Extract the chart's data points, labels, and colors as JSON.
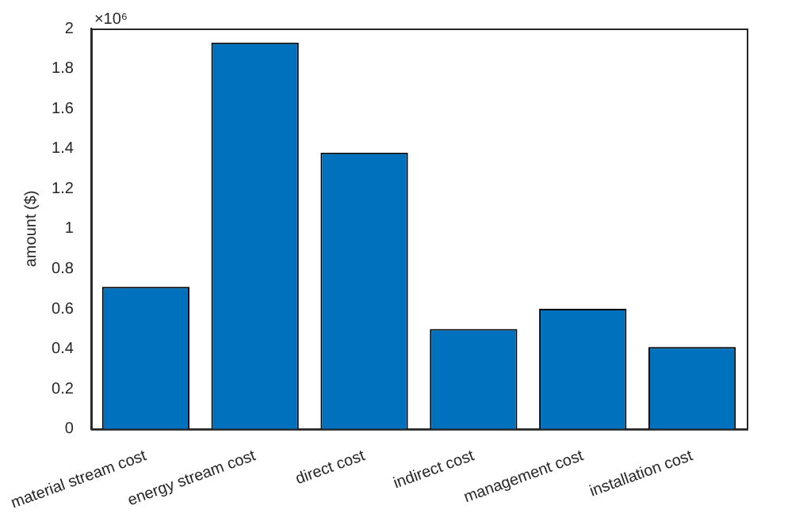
{
  "chart_data": {
    "type": "bar",
    "ylabel": "amount ($)",
    "annotations": [
      "×10⁶"
    ],
    "categories": [
      "material stream cost",
      "energy stream cost",
      "direct cost",
      "indirect cost",
      "management cost",
      "installation cost"
    ],
    "values": [
      0.71,
      1.93,
      1.38,
      0.5,
      0.6,
      0.41
    ],
    "color": "#0072bd",
    "ylim": [
      0,
      2
    ],
    "yticks": [
      0,
      0.2,
      0.4,
      0.6,
      0.8,
      1,
      1.2,
      1.4,
      1.6,
      1.8,
      2
    ],
    "grid": false,
    "legend": false
  }
}
